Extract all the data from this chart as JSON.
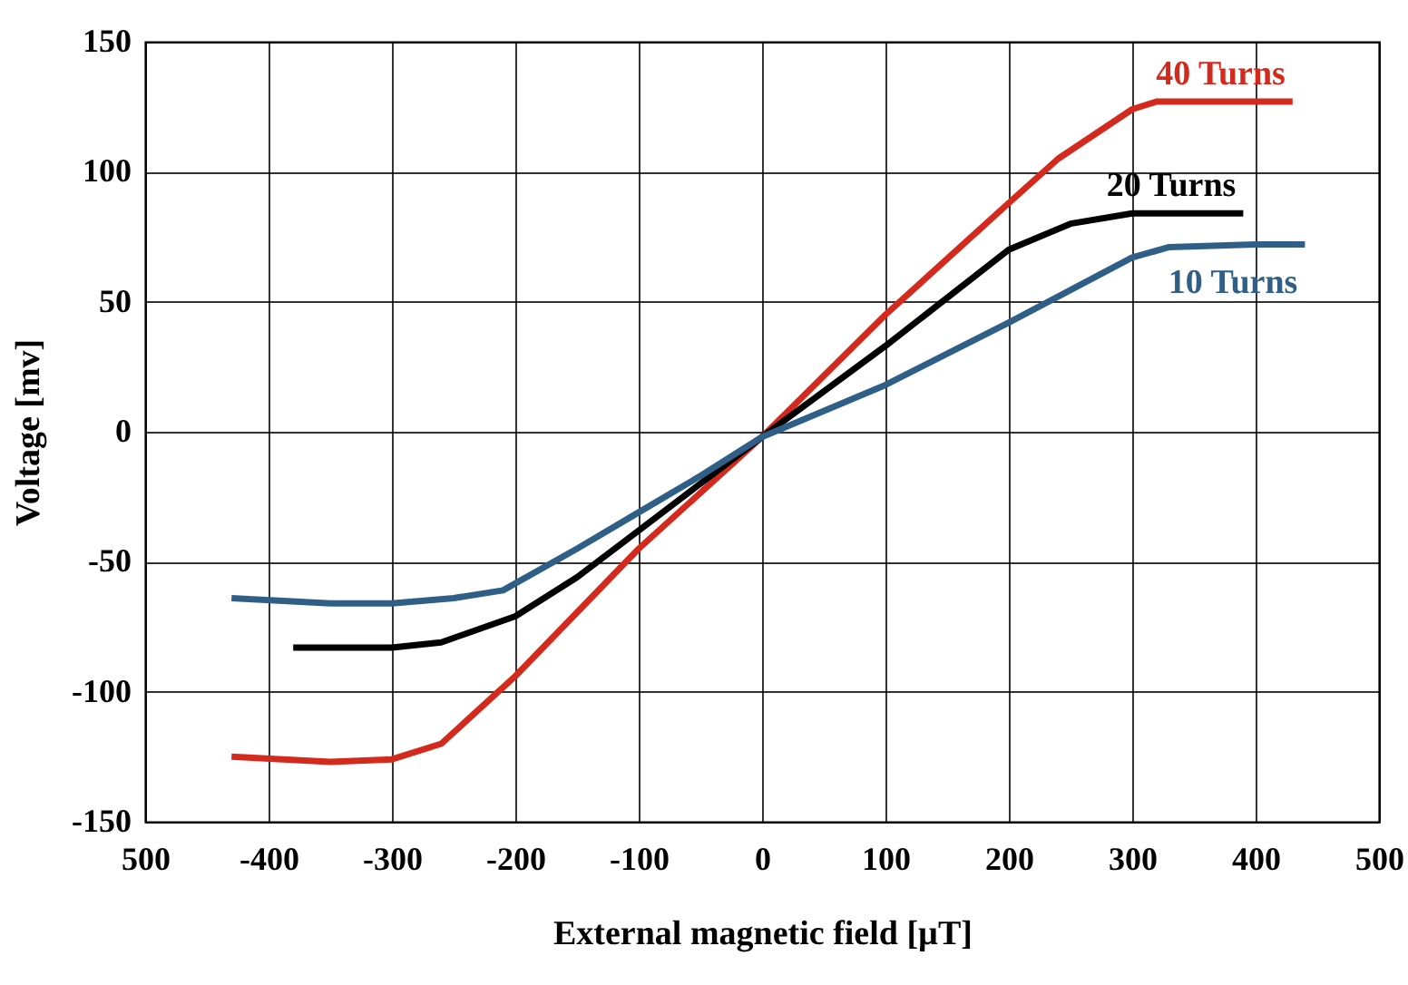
{
  "chart_data": {
    "type": "line",
    "xlabel": "External  magnetic field [µT]",
    "ylabel": "Voltage [mv]",
    "xlim": [
      -500,
      500
    ],
    "ylim": [
      -150,
      150
    ],
    "xticks": [
      {
        "value": -500,
        "label": "500"
      },
      -400,
      -300,
      -200,
      -100,
      0,
      100,
      200,
      300,
      400,
      500
    ],
    "yticks": [
      -150,
      -100,
      -50,
      0,
      50,
      100,
      150
    ],
    "grid": true,
    "legend": false,
    "marker": "none",
    "line_style": "solid",
    "series": [
      {
        "name": "40 Turns",
        "color": "#d42a1e",
        "x": [
          -430,
          -350,
          -300,
          -260,
          -200,
          -100,
          0,
          100,
          200,
          240,
          300,
          320,
          430
        ],
        "values": [
          -125,
          -127,
          -126,
          -120,
          -94,
          -45,
          -2,
          45,
          88,
          105,
          124,
          127,
          127
        ]
      },
      {
        "name": "20 Turns",
        "color": "#000000",
        "x": [
          -380,
          -300,
          -260,
          -200,
          -150,
          -100,
          -50,
          0,
          100,
          200,
          250,
          300,
          390
        ],
        "values": [
          -83,
          -83,
          -81,
          -71,
          -56,
          -38,
          -20,
          -2,
          33,
          70,
          80,
          84,
          84
        ]
      },
      {
        "name": "10 Turns",
        "color": "#2f5f86",
        "x": [
          -430,
          -350,
          -300,
          -250,
          -210,
          -150,
          -100,
          -50,
          0,
          100,
          200,
          300,
          330,
          400,
          440
        ],
        "values": [
          -64,
          -66,
          -66,
          -64,
          -61,
          -45,
          -31,
          -17,
          -2,
          18,
          42,
          67,
          71,
          72,
          72
        ]
      }
    ]
  }
}
